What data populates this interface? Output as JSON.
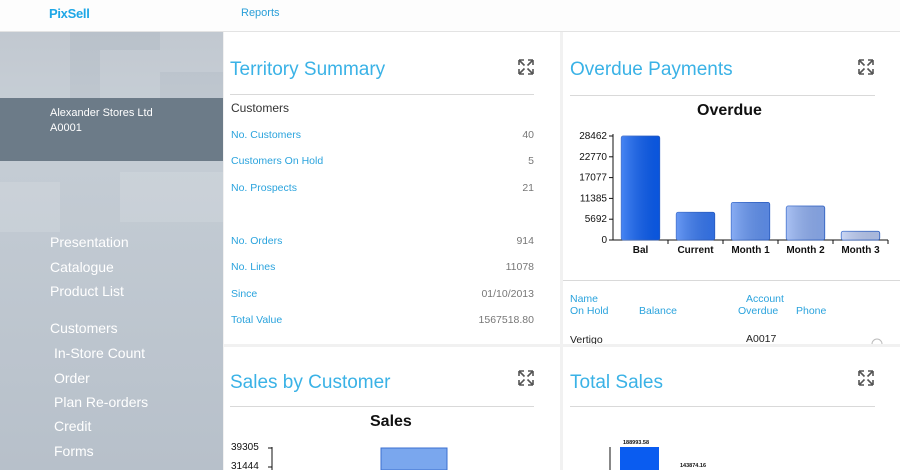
{
  "app": {
    "logo": "PixSell",
    "top_link": "Reports"
  },
  "sidebar": {
    "account_name": "Alexander Stores Ltd",
    "account_code": "A0001",
    "group1": [
      "Presentation",
      "Catalogue",
      "Product List"
    ],
    "group2_heading": "Customers",
    "group2": [
      "In-Store Count",
      "Order",
      "Plan Re-orders",
      "Credit",
      "Forms"
    ]
  },
  "territory": {
    "title": "Territory Summary",
    "heading": "Customers",
    "rows": [
      {
        "label": "No. Customers",
        "value": "40"
      },
      {
        "label": "Customers On Hold",
        "value": "5"
      },
      {
        "label": "No. Prospects",
        "value": "21"
      },
      {
        "label": "No. Orders",
        "value": "914"
      },
      {
        "label": "No. Lines",
        "value": "11078"
      },
      {
        "label": "Since",
        "value": "01/10/2013"
      },
      {
        "label": "Total Value",
        "value": "1567518.80"
      }
    ]
  },
  "overdue": {
    "title": "Overdue Payments",
    "table": {
      "headers": {
        "name": "Name",
        "on_hold": "On Hold",
        "balance": "Balance",
        "account": "Account",
        "overdue": "Overdue",
        "phone": "Phone"
      },
      "first_row": {
        "name": "Vertigo",
        "account": "A0017"
      }
    }
  },
  "sales_by_customer": {
    "title": "Sales by Customer"
  },
  "total_sales": {
    "title": "Total Sales"
  },
  "chart_data": [
    {
      "type": "bar",
      "title": "Overdue",
      "categories": [
        "Bal",
        "Current",
        "Month 1",
        "Month 2",
        "Month 3"
      ],
      "values": [
        28462,
        7600,
        10300,
        9300,
        2400
      ],
      "ylim": [
        0,
        28462
      ],
      "yticks": [
        "28462",
        "22770",
        "17077",
        "11385",
        "5692",
        "0"
      ],
      "colors": {
        "start": "#0a5cf0",
        "end": "#b8c8f0"
      }
    },
    {
      "type": "bar",
      "title": "Sales",
      "yticks": [
        "39305",
        "31444"
      ]
    },
    {
      "type": "bar",
      "labels": [
        "188993.58",
        "143874.16"
      ]
    }
  ]
}
